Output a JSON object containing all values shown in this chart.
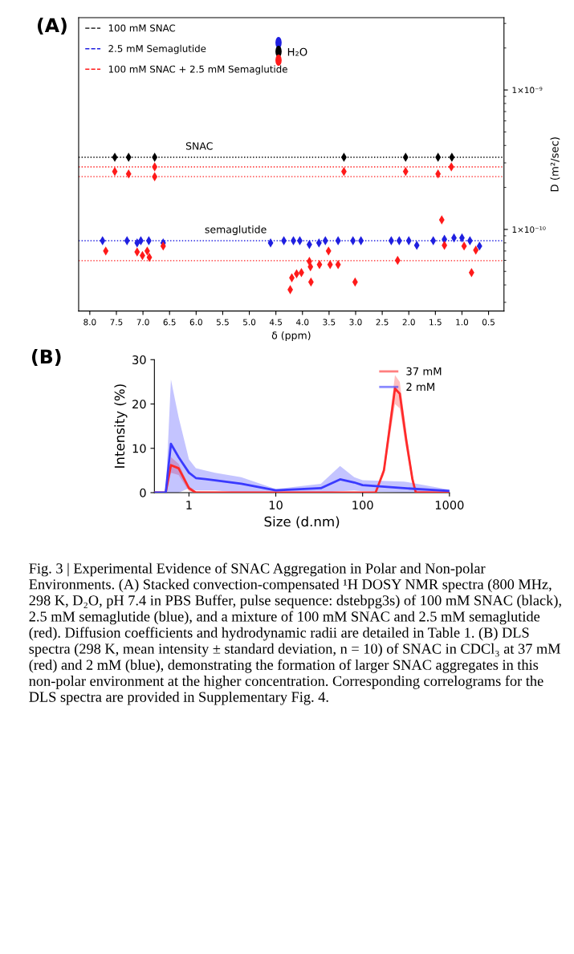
{
  "chart_data": [
    {
      "type": "scatter",
      "title": "(A)",
      "xlabel": "δ (ppm)",
      "ylabel": "D (m²/sec)",
      "log": "y",
      "marker": "diamond",
      "legend": "top left",
      "grid": false,
      "xlim": [
        8.21,
        0.21
      ],
      "xticks": [
        {
          "value": 8.0,
          "label": "8.0"
        },
        7.5,
        {
          "value": 7.0,
          "label": "7.0"
        },
        6.5,
        {
          "value": 6.0,
          "label": "6.0"
        },
        5.5,
        {
          "value": 5.0,
          "label": "5.0"
        },
        4.5,
        {
          "value": 4.0,
          "label": "4.0"
        },
        3.5,
        {
          "value": 3.0,
          "label": "3.0"
        },
        2.5,
        {
          "value": 2.0,
          "label": "2.0"
        },
        1.5,
        {
          "value": 1.0,
          "label": "1.0"
        },
        0.5
      ],
      "ylim": [
        2.6e-11,
        3.3e-09
      ],
      "yticks": [
        {
          "value": 1e-09,
          "label": "1×10⁻⁹"
        },
        {
          "value": 1e-10,
          "label": "1×10⁻¹⁰"
        }
      ],
      "series": [
        {
          "name": "100 mM SNAC",
          "color": "#000000",
          "x": [
            7.53,
            7.27,
            6.78,
            3.22,
            2.06,
            1.45,
            1.19
          ],
          "values": [
            3.29e-10,
            3.29e-10,
            3.29e-10,
            3.29e-10,
            3.29e-10,
            3.29e-10,
            3.29e-10
          ]
        },
        {
          "name": "2.5 mM Semaglutide",
          "color": "#1f1fe0",
          "x": [
            7.76,
            7.3,
            7.11,
            7.04,
            6.89,
            6.62,
            4.6,
            4.35,
            4.17,
            4.05,
            3.87,
            3.69,
            3.57,
            3.33,
            3.05,
            2.9,
            2.33,
            2.18,
            2.0,
            1.85,
            1.54,
            1.33,
            1.15,
            1.0,
            0.85,
            0.67
          ],
          "values": [
            8.3e-11,
            8.3e-11,
            8e-11,
            8.3e-11,
            8.3e-11,
            8e-11,
            8e-11,
            8.3e-11,
            8.3e-11,
            8.3e-11,
            7.8e-11,
            8e-11,
            8.3e-11,
            8.3e-11,
            8.3e-11,
            8.3e-11,
            8.3e-11,
            8.3e-11,
            8.3e-11,
            7.7e-11,
            8.3e-11,
            8.5e-11,
            8.7e-11,
            8.7e-11,
            8.3e-11,
            7.6e-11
          ]
        },
        {
          "name": "100 mM SNAC + 2.5 mM Semaglutide",
          "color": "#ff1a1a",
          "x": [
            7.53,
            7.27,
            6.78,
            6.78,
            3.22,
            2.06,
            1.45,
            1.2,
            1.38,
            7.7,
            7.11,
            7.01,
            6.92,
            6.88,
            6.62,
            3.87,
            3.85,
            3.68,
            3.51,
            3.48,
            3.33,
            4.2,
            4.11,
            4.02,
            3.84,
            4.23,
            3.01,
            2.21,
            1.33,
            0.96,
            0.82,
            0.74
          ],
          "values": [
            2.6e-10,
            2.5e-10,
            2.81e-10,
            2.39e-10,
            2.6e-10,
            2.6e-10,
            2.5e-10,
            2.81e-10,
            1.17e-10,
            7e-11,
            6.9e-11,
            6.5e-11,
            7e-11,
            6.3e-11,
            7.6e-11,
            5.9e-11,
            5.4e-11,
            5.6e-11,
            7e-11,
            5.6e-11,
            5.6e-11,
            4.5e-11,
            4.8e-11,
            4.9e-11,
            4.2e-11,
            3.7e-11,
            4.2e-11,
            6e-11,
            7.7e-11,
            7.6e-11,
            4.9e-11,
            7.1e-11
          ]
        }
      ],
      "ref_lines": [
        {
          "axis": "y",
          "value": 3.29e-10,
          "color": "#000000",
          "line_style": "dotted"
        },
        {
          "axis": "y",
          "value": 2.81e-10,
          "color": "#ff1a1a",
          "line_style": "dotted"
        },
        {
          "axis": "y",
          "value": 2.39e-10,
          "color": "#ff1a1a",
          "line_style": "dotted"
        },
        {
          "axis": "y",
          "value": 8.3e-11,
          "color": "#1f1fe0",
          "line_style": "dotted"
        },
        {
          "axis": "y",
          "value": 5.97e-11,
          "color": "#ff1a1a",
          "line_style": "dotted"
        }
      ],
      "annotations": [
        {
          "text": "SNAC",
          "x": 6.2,
          "y": 3.29e-10
        },
        {
          "text": "semaglutide",
          "x": 5.84,
          "y": 8.3e-11
        },
        "H₂O"
      ]
    },
    {
      "type": "line",
      "title": "(B)",
      "xlabel": "Size (d.nm)",
      "ylabel": "Intensity (%)",
      "log": "x",
      "legend": "top right",
      "grid": false,
      "xlim": [
        0.4,
        1000
      ],
      "xticks": [
        1,
        10,
        100,
        1000
      ],
      "ylim": [
        0,
        30
      ],
      "yticks": [
        0,
        10,
        20,
        30
      ],
      "series": [
        {
          "name": "37 mM",
          "color": "#ff2a2a",
          "x": [
            0.4,
            0.54,
            0.62,
            0.76,
            1,
            1.2,
            141,
            176,
            236,
            268,
            317,
            375,
            410,
            1000
          ],
          "values": [
            0,
            0,
            6.2,
            5.5,
            1,
            0,
            0,
            5,
            23.5,
            22.3,
            12,
            3,
            0,
            0
          ],
          "lower": [
            0,
            0,
            4.5,
            4,
            0.3,
            0,
            0,
            4,
            20,
            19,
            10,
            2,
            0,
            0
          ],
          "upper": [
            0,
            0,
            8,
            6.5,
            1.5,
            0.3,
            0,
            6,
            26.5,
            25,
            14,
            4,
            0.5,
            0
          ]
        },
        {
          "name": "2 mM",
          "color": "#3a3aff",
          "x": [
            0.4,
            0.54,
            0.62,
            0.76,
            1,
            1.2,
            2,
            4,
            10,
            33,
            55,
            80,
            100,
            300,
            1000
          ],
          "values": [
            0,
            0,
            11,
            8,
            4.5,
            3.3,
            2.8,
            2,
            0.5,
            1,
            3,
            2.3,
            1.7,
            1,
            0.4
          ],
          "lower": [
            0,
            0,
            0,
            0,
            1,
            0.5,
            0.5,
            0,
            0.2,
            0,
            0.3,
            0.5,
            0.3,
            0,
            0
          ],
          "upper": [
            0,
            0,
            25.5,
            17,
            7.5,
            5.5,
            4.5,
            3.5,
            0.8,
            2,
            6,
            3.5,
            2.8,
            2.5,
            0.7
          ]
        }
      ],
      "annotations": [
        "Fig. 3 | Experimental Evidence of SNAC Aggregation in Polar and Non-polar Environments. (A) Stacked convection-compensated ¹H DOSY NMR spectra (800 MHz, 298 K, D₂O, pH 7.4 in PBS Buffer, pulse sequence: dstebpg3s) of 100 mM SNAC (black), 2.5 mM semaglutide (blue), and a mixture of 100 mM SNAC and 2.5 mM semaglutide (red). Diffusion coefficients and hydrodynamic radii are detailed in Table 1. (B) DLS spectra (298 K, mean intensity ± standard deviation, n = 10) of SNAC in CDCl₃ at 37 mM (red) and 2 mM (blue), demonstrating the formation of larger SNAC aggregates in this non-polar environment at the higher concentration. Corresponding correlograms for the DLS spectra are provided in Supplementary Fig. 4."
      ]
    }
  ]
}
